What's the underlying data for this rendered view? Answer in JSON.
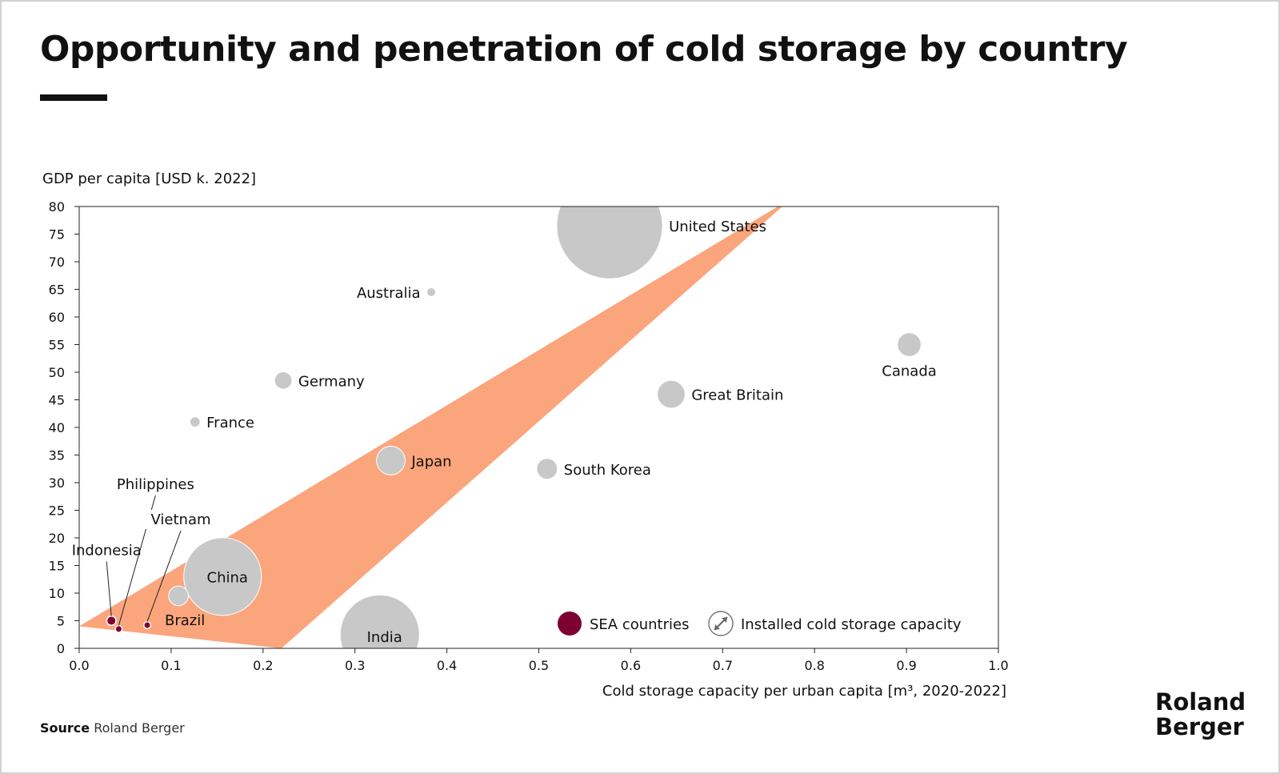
{
  "title": "Opportunity and penetration of cold storage by country",
  "source_label": "Source",
  "source_text": "Roland Berger",
  "logo": {
    "line1": "Roland",
    "line2": "Berger"
  },
  "colors": {
    "band": "#FBA57D",
    "bubble": "#C8C8C8",
    "sea": "#7D0033",
    "text": "#111111"
  },
  "chart_data": {
    "type": "scatter",
    "title": "Opportunity and penetration of cold storage by country",
    "xlabel": "Cold storage capacity per urban capita [m³, 2020-2022]",
    "ylabel": "GDP per capita [USD k. 2022]",
    "xlim": [
      0,
      1.0
    ],
    "ylim": [
      0,
      80
    ],
    "x_ticks": [
      "0.0",
      "0.1",
      "0.2",
      "0.3",
      "0.4",
      "0.5",
      "0.6",
      "0.7",
      "0.8",
      "0.9",
      "1.0"
    ],
    "y_ticks": [
      "0",
      "5",
      "10",
      "15",
      "20",
      "25",
      "30",
      "35",
      "40",
      "45",
      "50",
      "55",
      "60",
      "65",
      "70",
      "75",
      "80"
    ],
    "bubble_size_meaning": "Installed cold storage capacity",
    "band": {
      "lower": [
        [
          0.22,
          0
        ],
        [
          0.765,
          80
        ]
      ],
      "upper": [
        [
          0.0,
          4
        ],
        [
          0.76,
          80
        ]
      ]
    },
    "points": [
      {
        "name": "United States",
        "x": 0.577,
        "y": 76.5,
        "size": 130,
        "group": "other"
      },
      {
        "name": "Australia",
        "x": 0.383,
        "y": 64.5,
        "size": 0.9,
        "group": "other"
      },
      {
        "name": "Canada",
        "x": 0.903,
        "y": 55.0,
        "size": 6.5,
        "group": "other"
      },
      {
        "name": "Germany",
        "x": 0.222,
        "y": 48.5,
        "size": 3.5,
        "group": "other"
      },
      {
        "name": "Great Britain",
        "x": 0.644,
        "y": 46.0,
        "size": 9.0,
        "group": "other"
      },
      {
        "name": "France",
        "x": 0.126,
        "y": 41.0,
        "size": 1.2,
        "group": "other"
      },
      {
        "name": "Japan",
        "x": 0.339,
        "y": 34.0,
        "size": 9.5,
        "group": "other"
      },
      {
        "name": "South Korea",
        "x": 0.509,
        "y": 32.5,
        "size": 5.0,
        "group": "other"
      },
      {
        "name": "China",
        "x": 0.156,
        "y": 13.0,
        "size": 70,
        "group": "other"
      },
      {
        "name": "Brazil",
        "x": 0.108,
        "y": 9.5,
        "size": 4.5,
        "group": "other"
      },
      {
        "name": "India",
        "x": 0.327,
        "y": 2.5,
        "size": 73,
        "group": "other"
      },
      {
        "name": "Indonesia",
        "x": 0.035,
        "y": 5.0,
        "size": 1.0,
        "group": "SEA"
      },
      {
        "name": "Philippines",
        "x": 0.043,
        "y": 3.5,
        "size": 0.55,
        "group": "SEA"
      },
      {
        "name": "Vietnam",
        "x": 0.074,
        "y": 4.2,
        "size": 0.55,
        "group": "SEA"
      }
    ],
    "legend": [
      {
        "label": "SEA countries",
        "type": "filled-dot"
      },
      {
        "label": "Installed cold storage capacity",
        "type": "size-icon"
      }
    ],
    "legend_placement": "bottom-right",
    "grid": false
  }
}
